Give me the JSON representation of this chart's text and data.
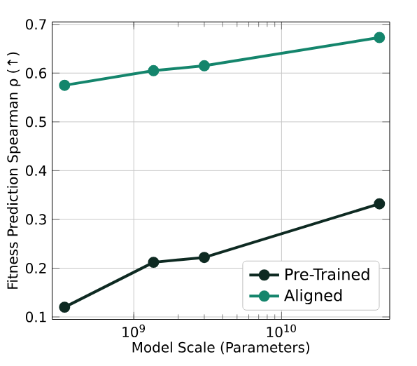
{
  "chart_data": {
    "type": "line",
    "xlabel": "Model Scale (Parameters)",
    "ylabel": "Fitness Prediction Spearman ρ (↑)",
    "log": "x",
    "grid": true,
    "legend": "bottom right",
    "marker": "circle",
    "line_style": "solid",
    "x": [
      340000000,
      1360000000,
      3000000000,
      46000000000
    ],
    "xlim": [
      280000000,
      54000000000
    ],
    "ylim": [
      0.095,
      0.705
    ],
    "xticks": [
      {
        "value": 1000000000,
        "label": "10$^{9}$"
      },
      {
        "value": 10000000000,
        "label": "10$^{10}$"
      }
    ],
    "yticks": [
      0.1,
      0.2,
      0.3,
      0.4,
      0.5,
      0.6,
      0.7
    ],
    "series": [
      {
        "name": "Pre-Trained",
        "color": "#0e2a22",
        "values": [
          0.12,
          0.212,
          0.222,
          0.332
        ]
      },
      {
        "name": "Aligned",
        "color": "#14856c",
        "values": [
          0.575,
          0.605,
          0.615,
          0.673
        ]
      }
    ]
  }
}
